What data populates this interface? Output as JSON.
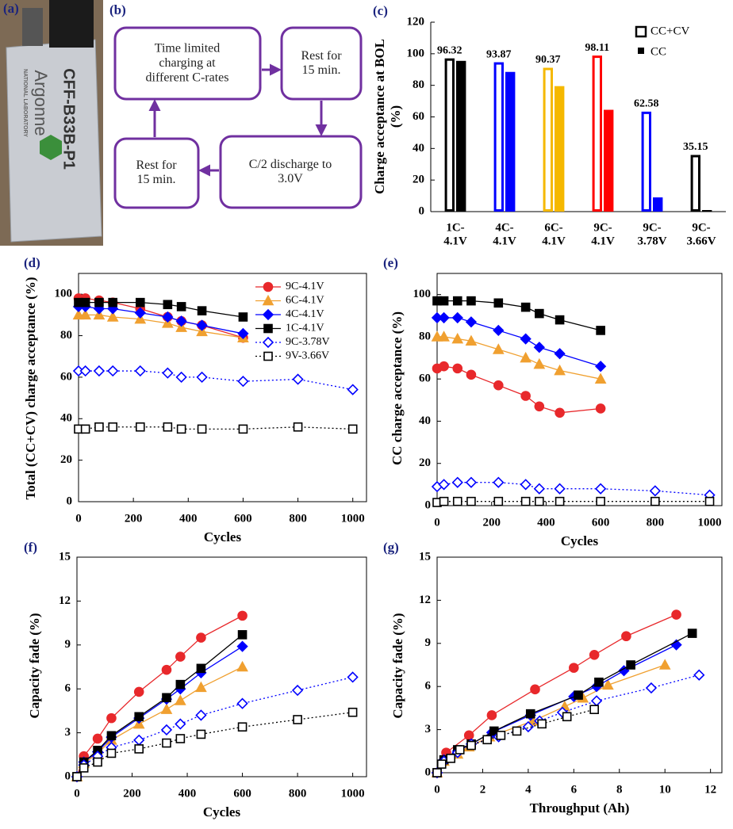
{
  "photo": {
    "panel": "(a)",
    "texts": [
      "Argonne",
      "NATIONAL LABORATORY",
      "CFF-B33B-P1"
    ]
  },
  "diagram": {
    "panel": "(b)",
    "nodes": [
      {
        "label": "Time limited\ncharging at\ndifferent C-rates"
      },
      {
        "label": "Rest for\n15 min."
      },
      {
        "label": "C/2 discharge to\n3.0V"
      },
      {
        "label": "Rest for\n15 min."
      }
    ]
  },
  "chart_data": [
    {
      "type": "bar",
      "panel": "(c)",
      "ylabel": "Charge acceptance at BOL\n(%)",
      "categories": [
        "1C-\n4.1V",
        "4C-\n4.1V",
        "6C-\n4.1V",
        "9C-\n4.1V",
        "9C-\n3.78V",
        "9C-\n3.66V"
      ],
      "bar_colors": [
        "#000000",
        "#0000ff",
        "#f5b800",
        "#ff0000",
        "#0000ff",
        "#000000"
      ],
      "series": [
        {
          "name": "CC+CV",
          "color": "#000000",
          "style": "hollow",
          "values": [
            96.32,
            93.87,
            90.37,
            98.11,
            62.58,
            35.15
          ]
        },
        {
          "name": "CC",
          "color": "#000000",
          "style": "filled",
          "values": [
            95.5,
            88.5,
            79.5,
            64.5,
            9,
            1
          ]
        }
      ],
      "ylim": [
        0,
        120
      ],
      "yticks": [
        0,
        20,
        40,
        60,
        80,
        100,
        120
      ],
      "legend": "upper right"
    },
    {
      "type": "line",
      "panel": "(d)",
      "ylabel": "Total (CC+CV) charge acceptance (%)",
      "xlabel": "Cycles",
      "xlim": [
        0,
        1050
      ],
      "xticks": [
        0,
        200,
        400,
        600,
        800,
        1000
      ],
      "ylim": [
        0,
        110
      ],
      "yticks": [
        0,
        20,
        40,
        60,
        80,
        100
      ],
      "legend": "upper right",
      "series": [
        {
          "name": "9C-4.1V",
          "color": "#e8282b",
          "marker": "circle",
          "filled": true,
          "dash": false,
          "x": [
            0,
            25,
            75,
            125,
            225,
            325,
            375,
            450,
            600
          ],
          "values": [
            98,
            98,
            97,
            96,
            93,
            89,
            87,
            85,
            79
          ]
        },
        {
          "name": "6C-4.1V",
          "color": "#f0a030",
          "marker": "triangle",
          "filled": true,
          "dash": false,
          "x": [
            0,
            25,
            75,
            125,
            225,
            325,
            375,
            450,
            600
          ],
          "values": [
            90,
            90,
            90,
            89,
            88,
            86,
            84,
            82,
            79
          ]
        },
        {
          "name": "4C-4.1V",
          "color": "#0000ff",
          "marker": "diamond",
          "filled": true,
          "dash": false,
          "x": [
            0,
            25,
            75,
            125,
            225,
            325,
            375,
            450,
            600
          ],
          "values": [
            94,
            94,
            93,
            93,
            91,
            89,
            87,
            85,
            81
          ]
        },
        {
          "name": "1C-4.1V",
          "color": "#000000",
          "marker": "square",
          "filled": true,
          "dash": false,
          "x": [
            0,
            25,
            75,
            125,
            225,
            325,
            375,
            450,
            600
          ],
          "values": [
            96,
            96,
            96,
            96,
            96,
            95,
            94,
            92,
            89
          ]
        },
        {
          "name": "9C-3.78V",
          "color": "#0000ff",
          "marker": "diamond",
          "filled": false,
          "dash": true,
          "x": [
            0,
            25,
            75,
            125,
            225,
            325,
            375,
            450,
            600,
            800,
            1000
          ],
          "values": [
            63,
            63,
            63,
            63,
            63,
            62,
            60,
            60,
            58,
            59,
            54
          ]
        },
        {
          "name": "9V-3.66V",
          "color": "#000000",
          "marker": "square",
          "filled": false,
          "dash": true,
          "x": [
            0,
            25,
            75,
            125,
            225,
            325,
            375,
            450,
            600,
            800,
            1000
          ],
          "values": [
            35,
            35,
            36,
            36,
            36,
            36,
            35,
            35,
            35,
            36,
            35
          ]
        }
      ]
    },
    {
      "type": "line",
      "panel": "(e)",
      "ylabel": "CC charge acceptance (%)",
      "xlabel": "Cycles",
      "xlim": [
        0,
        1045
      ],
      "xticks": [
        0,
        200,
        400,
        600,
        800,
        1000
      ],
      "ylim": [
        0,
        110
      ],
      "yticks": [
        0,
        20,
        40,
        60,
        80,
        100
      ],
      "series": [
        {
          "color": "#e8282b",
          "marker": "circle",
          "filled": true,
          "dash": false,
          "x": [
            0,
            25,
            75,
            125,
            225,
            325,
            375,
            450,
            600
          ],
          "values": [
            65,
            66,
            65,
            62,
            57,
            52,
            47,
            44,
            46
          ]
        },
        {
          "color": "#f0a030",
          "marker": "triangle",
          "filled": true,
          "dash": false,
          "x": [
            0,
            25,
            75,
            125,
            225,
            325,
            375,
            450,
            600
          ],
          "values": [
            80,
            80,
            79,
            78,
            74,
            70,
            67,
            64,
            60
          ]
        },
        {
          "color": "#0000ff",
          "marker": "diamond",
          "filled": true,
          "dash": false,
          "x": [
            0,
            25,
            75,
            125,
            225,
            325,
            375,
            450,
            600
          ],
          "values": [
            89,
            89,
            89,
            87,
            83,
            79,
            75,
            72,
            66
          ]
        },
        {
          "color": "#000000",
          "marker": "square",
          "filled": true,
          "dash": false,
          "x": [
            0,
            25,
            75,
            125,
            225,
            325,
            375,
            450,
            600
          ],
          "values": [
            97,
            97,
            97,
            97,
            96,
            94,
            91,
            88,
            83
          ]
        },
        {
          "color": "#0000ff",
          "marker": "diamond",
          "filled": false,
          "dash": true,
          "x": [
            0,
            25,
            75,
            125,
            225,
            325,
            375,
            450,
            600,
            800,
            1000
          ],
          "values": [
            9,
            10,
            11,
            11,
            11,
            10,
            8,
            8,
            8,
            7,
            5
          ]
        },
        {
          "color": "#000000",
          "marker": "square",
          "filled": false,
          "dash": true,
          "x": [
            0,
            25,
            75,
            125,
            225,
            325,
            375,
            450,
            600,
            800,
            1000
          ],
          "values": [
            1.5,
            2,
            2,
            2,
            2,
            2,
            2,
            2,
            2,
            2,
            2
          ]
        }
      ]
    },
    {
      "type": "line",
      "panel": "(f)",
      "ylabel": "Capacity fade (%)",
      "xlabel": "Cycles",
      "xlim": [
        0,
        1050
      ],
      "xticks": [
        0,
        200,
        400,
        600,
        800,
        1000
      ],
      "ylim": [
        0,
        15
      ],
      "yticks": [
        0,
        3,
        6,
        9,
        12,
        15
      ],
      "series": [
        {
          "color": "#e8282b",
          "marker": "circle",
          "filled": true,
          "dash": false,
          "x": [
            0,
            25,
            75,
            125,
            225,
            325,
            375,
            450,
            600
          ],
          "values": [
            0,
            1.4,
            2.6,
            4.0,
            5.8,
            7.3,
            8.2,
            9.5,
            11.0
          ]
        },
        {
          "color": "#f0a030",
          "marker": "triangle",
          "filled": true,
          "dash": false,
          "x": [
            0,
            25,
            75,
            125,
            225,
            325,
            375,
            450,
            600
          ],
          "values": [
            0,
            0.9,
            1.6,
            2.5,
            3.6,
            4.6,
            5.2,
            6.1,
            7.5
          ]
        },
        {
          "color": "#0000ff",
          "marker": "diamond",
          "filled": true,
          "dash": false,
          "x": [
            0,
            25,
            75,
            125,
            225,
            325,
            375,
            450,
            600
          ],
          "values": [
            0,
            1.0,
            1.7,
            2.7,
            4.0,
            5.3,
            6.0,
            7.1,
            8.9
          ]
        },
        {
          "color": "#000000",
          "marker": "square",
          "filled": true,
          "dash": false,
          "x": [
            0,
            25,
            75,
            125,
            225,
            325,
            375,
            450,
            600
          ],
          "values": [
            0,
            1.0,
            1.8,
            2.8,
            4.1,
            5.4,
            6.3,
            7.4,
            9.7
          ]
        },
        {
          "color": "#0000ff",
          "marker": "diamond",
          "filled": false,
          "dash": true,
          "x": [
            0,
            25,
            75,
            125,
            225,
            325,
            375,
            450,
            600,
            800,
            1000
          ],
          "values": [
            0,
            0.8,
            1.4,
            2.0,
            2.5,
            3.2,
            3.6,
            4.2,
            5.0,
            5.9,
            6.8
          ]
        },
        {
          "color": "#000000",
          "marker": "square",
          "filled": false,
          "dash": true,
          "x": [
            0,
            25,
            75,
            125,
            225,
            325,
            375,
            450,
            600,
            800,
            1000
          ],
          "values": [
            0,
            0.6,
            1.0,
            1.6,
            1.9,
            2.3,
            2.6,
            2.9,
            3.4,
            3.9,
            4.4
          ]
        }
      ]
    },
    {
      "type": "line",
      "panel": "(g)",
      "ylabel": "Capacity fade (%)",
      "xlabel": "Throughput (Ah)",
      "xlim": [
        0,
        12.5
      ],
      "xticks": [
        0,
        2,
        4,
        6,
        8,
        10,
        12
      ],
      "ylim": [
        0,
        15
      ],
      "yticks": [
        0,
        3,
        6,
        9,
        12,
        15
      ],
      "series": [
        {
          "color": "#e8282b",
          "marker": "circle",
          "filled": true,
          "dash": false,
          "x": [
            0,
            0.4,
            1.4,
            2.4,
            4.3,
            6.0,
            6.9,
            8.3,
            10.5
          ],
          "values": [
            0,
            1.4,
            2.6,
            4.0,
            5.8,
            7.3,
            8.2,
            9.5,
            11.0
          ]
        },
        {
          "color": "#f0a030",
          "marker": "triangle",
          "filled": true,
          "dash": false,
          "x": [
            0,
            0.3,
            0.9,
            1.4,
            2.3,
            4.2,
            5.6,
            6.4,
            7.5,
            10.0
          ],
          "values": [
            0,
            0.8,
            1.3,
            1.8,
            2.5,
            3.6,
            4.6,
            5.2,
            6.1,
            7.5
          ]
        },
        {
          "color": "#0000ff",
          "marker": "diamond",
          "filled": true,
          "dash": false,
          "x": [
            0,
            0.3,
            0.9,
            1.5,
            2.4,
            4.1,
            6.0,
            7.0,
            8.2,
            10.5
          ],
          "values": [
            0,
            0.9,
            1.5,
            2.0,
            2.8,
            4.0,
            5.3,
            6.0,
            7.1,
            8.9
          ]
        },
        {
          "color": "#000000",
          "marker": "square",
          "filled": true,
          "dash": false,
          "x": [
            0,
            0.3,
            0.9,
            1.5,
            2.5,
            4.1,
            6.2,
            7.1,
            8.5,
            11.2
          ],
          "values": [
            0,
            0.9,
            1.6,
            2.0,
            2.9,
            4.1,
            5.4,
            6.3,
            7.5,
            9.7
          ]
        },
        {
          "color": "#0000ff",
          "marker": "diamond",
          "filled": false,
          "dash": true,
          "x": [
            0,
            0.3,
            0.9,
            1.5,
            2.7,
            4.0,
            4.5,
            5.5,
            7.0,
            9.4,
            11.5
          ],
          "values": [
            0,
            0.8,
            1.4,
            2.0,
            2.5,
            3.2,
            3.6,
            4.2,
            5.0,
            5.9,
            6.8
          ]
        },
        {
          "color": "#000000",
          "marker": "square",
          "filled": false,
          "dash": true,
          "x": [
            0,
            0.2,
            0.6,
            1.0,
            1.5,
            2.2,
            2.8,
            3.5,
            4.6,
            5.7,
            6.9
          ],
          "values": [
            0,
            0.6,
            1.0,
            1.6,
            1.9,
            2.3,
            2.6,
            2.9,
            3.4,
            3.9,
            4.4
          ]
        }
      ]
    }
  ]
}
